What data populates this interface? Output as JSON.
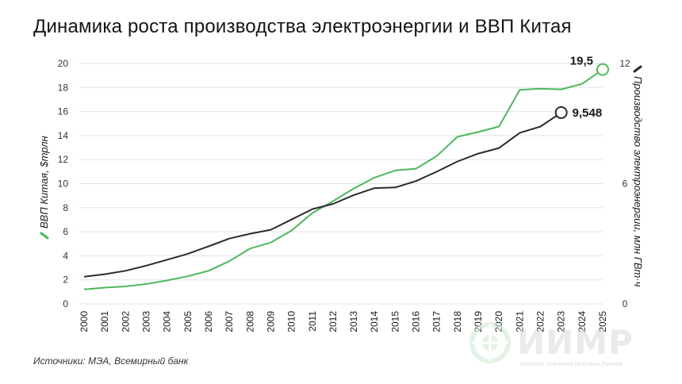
{
  "title": "Динамика роста производства электроэнергии и ВВП Китая",
  "source": "Источники: МЭА, Всемирный банк",
  "watermark": {
    "brand": "ИИМР",
    "subtitle": "Институт Изучения Мировых Рынков"
  },
  "colors": {
    "gdp": "#4cb85c",
    "power": "#2b2b2b",
    "grid": "#e3e3e3",
    "watermark": "#d9d9d9"
  },
  "chart_data": {
    "type": "line",
    "x": [
      "2000",
      "2001",
      "2002",
      "2003",
      "2004",
      "2005",
      "2006",
      "2007",
      "2008",
      "2009",
      "2010",
      "2011",
      "2012",
      "2013",
      "2014",
      "2015",
      "2016",
      "2017",
      "2018",
      "2019",
      "2020",
      "2021",
      "2022",
      "2023",
      "2024",
      "2025"
    ],
    "left_axis": {
      "label": "ВВП Китая, $трлн",
      "ylim": [
        0,
        20
      ],
      "ticks": [
        "0",
        "2",
        "4",
        "6",
        "8",
        "10",
        "12",
        "14",
        "16",
        "18",
        "20"
      ]
    },
    "right_axis": {
      "label": "Производство электроэнергии, млн ГВт·ч",
      "ylim": [
        0,
        12
      ],
      "ticks": [
        "0",
        "6",
        "12"
      ]
    },
    "series": [
      {
        "axis": "left",
        "color": "#4cb85c",
        "values": [
          1.2,
          1.35,
          1.45,
          1.65,
          1.95,
          2.3,
          2.75,
          3.55,
          4.6,
          5.1,
          6.1,
          7.55,
          8.55,
          9.6,
          10.5,
          11.1,
          11.25,
          12.3,
          13.9,
          14.3,
          14.75,
          17.8,
          17.9,
          17.85,
          18.3,
          19.5
        ],
        "end_label": "19,5",
        "end_marker_year": "2025"
      },
      {
        "axis": "right",
        "color": "#2b2b2b",
        "values": [
          1.36,
          1.48,
          1.65,
          1.91,
          2.2,
          2.5,
          2.87,
          3.26,
          3.5,
          3.7,
          4.21,
          4.73,
          4.99,
          5.43,
          5.78,
          5.81,
          6.13,
          6.6,
          7.11,
          7.5,
          7.78,
          8.54,
          8.85,
          9.548,
          null,
          null
        ],
        "end_label": "9,548",
        "end_marker_year": "2023"
      }
    ],
    "grid": "horizontal",
    "legend": "none"
  }
}
